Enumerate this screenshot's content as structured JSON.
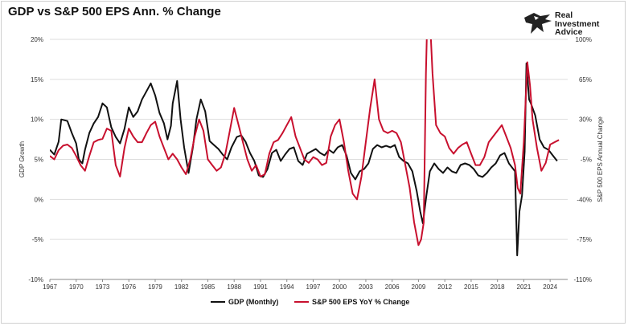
{
  "title": "GDP vs S&P 500 EPS Ann. % Change",
  "logo": {
    "lines": [
      "Real",
      "Investment",
      "Advice"
    ]
  },
  "colors": {
    "gdp": "#111111",
    "eps": "#c8102e",
    "grid": "#dddddd",
    "axis": "#333333"
  },
  "chart_data": {
    "type": "line",
    "title": "GDP vs S&P 500 EPS Ann. % Change",
    "xlabel": "",
    "ylabel_left": "GDP Growth",
    "ylabel_right": "S&P 500 EPS Annual Change",
    "xlim": [
      1967,
      2026
    ],
    "ylim_left": [
      -10,
      20
    ],
    "ylim_right": [
      -110,
      100
    ],
    "x_ticks": [
      "1967",
      "1970",
      "1973",
      "1976",
      "1979",
      "1982",
      "1985",
      "1988",
      "1991",
      "1994",
      "1997",
      "2000",
      "2003",
      "2006",
      "2009",
      "2012",
      "2015",
      "2018",
      "2021",
      "2024"
    ],
    "y_ticks_left": [
      "20%",
      "15%",
      "10%",
      "5%",
      "0%",
      "-5%",
      "-10%"
    ],
    "y_ticks_right": [
      "100%",
      "65%",
      "30%",
      "-5%",
      "-40%",
      "-75%",
      "-110%"
    ],
    "grid": true,
    "legend_position": "bottom",
    "series": [
      {
        "name": "GDP (Monthly)",
        "axis": "left",
        "points": [
          [
            1967.0,
            6.2
          ],
          [
            1967.5,
            5.6
          ],
          [
            1968.0,
            7.2
          ],
          [
            1968.3,
            10.0
          ],
          [
            1969.0,
            9.8
          ],
          [
            1969.5,
            8.3
          ],
          [
            1970.0,
            7.0
          ],
          [
            1970.3,
            5.0
          ],
          [
            1970.7,
            4.5
          ],
          [
            1971.0,
            6.2
          ],
          [
            1971.5,
            8.3
          ],
          [
            1972.0,
            9.5
          ],
          [
            1972.5,
            10.3
          ],
          [
            1973.0,
            12.0
          ],
          [
            1973.5,
            11.5
          ],
          [
            1974.0,
            9.0
          ],
          [
            1974.5,
            7.8
          ],
          [
            1975.0,
            7.0
          ],
          [
            1975.5,
            8.8
          ],
          [
            1976.0,
            11.5
          ],
          [
            1976.5,
            10.3
          ],
          [
            1977.0,
            11.0
          ],
          [
            1977.5,
            12.5
          ],
          [
            1978.0,
            13.5
          ],
          [
            1978.5,
            14.5
          ],
          [
            1979.0,
            13.0
          ],
          [
            1979.5,
            10.8
          ],
          [
            1980.0,
            9.5
          ],
          [
            1980.4,
            7.5
          ],
          [
            1980.8,
            9.2
          ],
          [
            1981.0,
            12.0
          ],
          [
            1981.5,
            14.8
          ],
          [
            1981.9,
            10.0
          ],
          [
            1982.3,
            6.5
          ],
          [
            1982.8,
            3.3
          ],
          [
            1983.3,
            6.5
          ],
          [
            1983.7,
            10.0
          ],
          [
            1984.2,
            12.5
          ],
          [
            1984.7,
            11.0
          ],
          [
            1985.2,
            7.3
          ],
          [
            1985.7,
            6.8
          ],
          [
            1986.2,
            6.3
          ],
          [
            1986.7,
            5.6
          ],
          [
            1987.2,
            5.0
          ],
          [
            1987.7,
            6.5
          ],
          [
            1988.3,
            7.8
          ],
          [
            1988.8,
            8.0
          ],
          [
            1989.3,
            7.2
          ],
          [
            1989.8,
            5.8
          ],
          [
            1990.3,
            4.8
          ],
          [
            1990.8,
            3.0
          ],
          [
            1991.3,
            2.8
          ],
          [
            1991.8,
            3.8
          ],
          [
            1992.3,
            5.8
          ],
          [
            1992.8,
            6.2
          ],
          [
            1993.3,
            4.8
          ],
          [
            1993.8,
            5.6
          ],
          [
            1994.3,
            6.3
          ],
          [
            1994.8,
            6.5
          ],
          [
            1995.3,
            4.8
          ],
          [
            1995.8,
            4.3
          ],
          [
            1996.3,
            5.7
          ],
          [
            1996.8,
            6.0
          ],
          [
            1997.3,
            6.3
          ],
          [
            1997.8,
            5.8
          ],
          [
            1998.3,
            5.5
          ],
          [
            1998.8,
            6.2
          ],
          [
            1999.3,
            5.8
          ],
          [
            1999.8,
            6.5
          ],
          [
            2000.3,
            6.8
          ],
          [
            2000.8,
            5.5
          ],
          [
            2001.3,
            3.3
          ],
          [
            2001.8,
            2.5
          ],
          [
            2002.3,
            3.5
          ],
          [
            2002.8,
            3.8
          ],
          [
            2003.3,
            4.5
          ],
          [
            2003.8,
            6.3
          ],
          [
            2004.3,
            6.8
          ],
          [
            2004.8,
            6.5
          ],
          [
            2005.3,
            6.7
          ],
          [
            2005.8,
            6.5
          ],
          [
            2006.3,
            6.8
          ],
          [
            2006.8,
            5.3
          ],
          [
            2007.3,
            4.8
          ],
          [
            2007.8,
            4.5
          ],
          [
            2008.3,
            3.5
          ],
          [
            2008.8,
            1.0
          ],
          [
            2009.2,
            -1.5
          ],
          [
            2009.5,
            -3.0
          ],
          [
            2009.9,
            0.5
          ],
          [
            2010.3,
            3.5
          ],
          [
            2010.8,
            4.5
          ],
          [
            2011.3,
            3.8
          ],
          [
            2011.8,
            3.3
          ],
          [
            2012.3,
            4.0
          ],
          [
            2012.8,
            3.5
          ],
          [
            2013.3,
            3.3
          ],
          [
            2013.8,
            4.3
          ],
          [
            2014.3,
            4.5
          ],
          [
            2014.8,
            4.3
          ],
          [
            2015.3,
            3.8
          ],
          [
            2015.8,
            3.0
          ],
          [
            2016.3,
            2.8
          ],
          [
            2016.8,
            3.3
          ],
          [
            2017.3,
            4.0
          ],
          [
            2017.8,
            4.5
          ],
          [
            2018.3,
            5.5
          ],
          [
            2018.8,
            5.8
          ],
          [
            2019.3,
            4.5
          ],
          [
            2019.8,
            3.8
          ],
          [
            2020.0,
            3.5
          ],
          [
            2020.25,
            -7.0
          ],
          [
            2020.5,
            -1.5
          ],
          [
            2020.8,
            0.5
          ],
          [
            2021.1,
            6.0
          ],
          [
            2021.3,
            17.0
          ],
          [
            2021.6,
            12.5
          ],
          [
            2021.8,
            12.0
          ],
          [
            2022.3,
            10.5
          ],
          [
            2022.8,
            7.5
          ],
          [
            2023.3,
            6.5
          ],
          [
            2023.8,
            6.2
          ],
          [
            2024.3,
            5.5
          ],
          [
            2024.8,
            4.8
          ]
        ]
      },
      {
        "name": "S&P 500 EPS YoY % Change",
        "axis": "right",
        "points": [
          [
            1967.0,
            -2
          ],
          [
            1967.5,
            -5
          ],
          [
            1968.0,
            3
          ],
          [
            1968.5,
            7
          ],
          [
            1969.0,
            8
          ],
          [
            1969.5,
            5
          ],
          [
            1970.0,
            -2
          ],
          [
            1970.5,
            -10
          ],
          [
            1971.0,
            -15
          ],
          [
            1971.5,
            -2
          ],
          [
            1972.0,
            10
          ],
          [
            1972.5,
            12
          ],
          [
            1973.0,
            13
          ],
          [
            1973.5,
            22
          ],
          [
            1974.0,
            20
          ],
          [
            1974.5,
            -10
          ],
          [
            1975.0,
            -20
          ],
          [
            1975.5,
            5
          ],
          [
            1976.0,
            22
          ],
          [
            1976.5,
            15
          ],
          [
            1977.0,
            10
          ],
          [
            1977.5,
            10
          ],
          [
            1978.0,
            18
          ],
          [
            1978.5,
            25
          ],
          [
            1979.0,
            28
          ],
          [
            1979.5,
            15
          ],
          [
            1980.0,
            5
          ],
          [
            1980.5,
            -5
          ],
          [
            1981.0,
            0
          ],
          [
            1981.5,
            -5
          ],
          [
            1982.0,
            -12
          ],
          [
            1982.5,
            -18
          ],
          [
            1983.0,
            -5
          ],
          [
            1983.5,
            15
          ],
          [
            1984.0,
            30
          ],
          [
            1984.5,
            20
          ],
          [
            1985.0,
            -5
          ],
          [
            1985.5,
            -10
          ],
          [
            1986.0,
            -15
          ],
          [
            1986.5,
            -12
          ],
          [
            1987.0,
            0
          ],
          [
            1987.5,
            20
          ],
          [
            1988.0,
            40
          ],
          [
            1988.5,
            25
          ],
          [
            1989.0,
            10
          ],
          [
            1989.5,
            -5
          ],
          [
            1990.0,
            -15
          ],
          [
            1990.5,
            -10
          ],
          [
            1991.0,
            -20
          ],
          [
            1991.5,
            -18
          ],
          [
            1992.0,
            0
          ],
          [
            1992.5,
            10
          ],
          [
            1993.0,
            12
          ],
          [
            1993.5,
            18
          ],
          [
            1994.0,
            25
          ],
          [
            1994.5,
            32
          ],
          [
            1995.0,
            15
          ],
          [
            1995.5,
            5
          ],
          [
            1996.0,
            -5
          ],
          [
            1996.5,
            -8
          ],
          [
            1997.0,
            -3
          ],
          [
            1997.5,
            -5
          ],
          [
            1998.0,
            -10
          ],
          [
            1998.5,
            -8
          ],
          [
            1999.0,
            15
          ],
          [
            1999.5,
            25
          ],
          [
            2000.0,
            30
          ],
          [
            2000.5,
            10
          ],
          [
            2001.0,
            -15
          ],
          [
            2001.5,
            -35
          ],
          [
            2002.0,
            -40
          ],
          [
            2002.5,
            -20
          ],
          [
            2003.0,
            10
          ],
          [
            2003.5,
            40
          ],
          [
            2004.0,
            65
          ],
          [
            2004.5,
            30
          ],
          [
            2005.0,
            20
          ],
          [
            2005.5,
            18
          ],
          [
            2006.0,
            20
          ],
          [
            2006.5,
            18
          ],
          [
            2007.0,
            10
          ],
          [
            2007.5,
            -10
          ],
          [
            2008.0,
            -30
          ],
          [
            2008.5,
            -60
          ],
          [
            2009.0,
            -80
          ],
          [
            2009.3,
            -75
          ],
          [
            2009.6,
            -60
          ],
          [
            2009.85,
            70
          ],
          [
            2010.0,
            120
          ],
          [
            2010.3,
            120
          ],
          [
            2010.6,
            70
          ],
          [
            2011.0,
            25
          ],
          [
            2011.5,
            18
          ],
          [
            2012.0,
            15
          ],
          [
            2012.5,
            5
          ],
          [
            2013.0,
            0
          ],
          [
            2013.5,
            5
          ],
          [
            2014.0,
            8
          ],
          [
            2014.5,
            10
          ],
          [
            2015.0,
            0
          ],
          [
            2015.5,
            -10
          ],
          [
            2016.0,
            -10
          ],
          [
            2016.5,
            -3
          ],
          [
            2017.0,
            10
          ],
          [
            2017.5,
            15
          ],
          [
            2018.0,
            20
          ],
          [
            2018.5,
            25
          ],
          [
            2019.0,
            15
          ],
          [
            2019.5,
            5
          ],
          [
            2020.0,
            -10
          ],
          [
            2020.3,
            -30
          ],
          [
            2020.6,
            -35
          ],
          [
            2021.0,
            10
          ],
          [
            2021.4,
            80
          ],
          [
            2021.7,
            60
          ],
          [
            2022.0,
            30
          ],
          [
            2022.5,
            5
          ],
          [
            2023.0,
            -15
          ],
          [
            2023.5,
            -8
          ],
          [
            2024.0,
            8
          ],
          [
            2024.5,
            10
          ],
          [
            2025.0,
            12
          ]
        ]
      }
    ]
  }
}
